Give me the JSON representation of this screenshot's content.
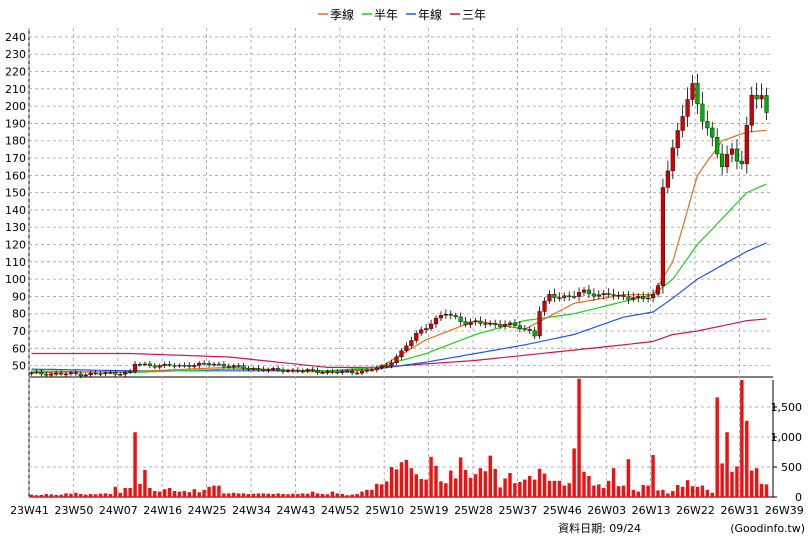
{
  "legend": [
    {
      "label": "季線",
      "color": "#e07020"
    },
    {
      "label": "半年",
      "color": "#22cc22"
    },
    {
      "label": "年線",
      "color": "#2255ee"
    },
    {
      "label": "三年",
      "color": "#cc1166"
    }
  ],
  "footer": {
    "date_label": "資料日期: 09/24",
    "source": "(Goodinfo.tw)"
  },
  "colors": {
    "up": "#d40000",
    "down": "#00b000",
    "volume": "#ee1111",
    "grid": "#a0a0a0"
  },
  "chart_data": {
    "type": "candlestick",
    "price_axis": {
      "ylim": [
        44,
        244
      ],
      "ticks": [
        50,
        60,
        70,
        80,
        90,
        100,
        110,
        120,
        130,
        140,
        150,
        160,
        170,
        180,
        190,
        200,
        210,
        220,
        230,
        240
      ]
    },
    "volume_axis": {
      "ylim": [
        0,
        1950
      ],
      "ticks": [
        0,
        500,
        1000,
        1500
      ],
      "tick_labels": [
        "0",
        "500",
        "1,000",
        "1,500"
      ]
    },
    "x_ticks": [
      "23W41",
      "23W50",
      "24W07",
      "24W16",
      "24W25",
      "24W34",
      "24W43",
      "24W52",
      "25W10",
      "25W19",
      "25W28",
      "25W37",
      "25W46",
      "26W03",
      "26W13",
      "26W22",
      "26W31",
      "26W39"
    ],
    "tick_every": 9,
    "price_anchors": [
      [
        0,
        45.5
      ],
      [
        10,
        45
      ],
      [
        20,
        46
      ],
      [
        21,
        51
      ],
      [
        25,
        50
      ],
      [
        30,
        50
      ],
      [
        37,
        51
      ],
      [
        42,
        49
      ],
      [
        48,
        47.5
      ],
      [
        55,
        47
      ],
      [
        64,
        46
      ],
      [
        68,
        47
      ],
      [
        72,
        50
      ],
      [
        75,
        58
      ],
      [
        78,
        68
      ],
      [
        81,
        75
      ],
      [
        84,
        80
      ],
      [
        88,
        75
      ],
      [
        93,
        74
      ],
      [
        96,
        74
      ],
      [
        99,
        72
      ],
      [
        101,
        70
      ],
      [
        102,
        68
      ],
      [
        103,
        82
      ],
      [
        105,
        90
      ],
      [
        108,
        90
      ],
      [
        112,
        92
      ],
      [
        115,
        91
      ],
      [
        117,
        92
      ],
      [
        119,
        89
      ],
      [
        122,
        90
      ],
      [
        124,
        89
      ],
      [
        126,
        90
      ],
      [
        127,
        95
      ],
      [
        128,
        155
      ],
      [
        130,
        175
      ],
      [
        132,
        195
      ],
      [
        134,
        210
      ],
      [
        136,
        195
      ],
      [
        138,
        180
      ],
      [
        140,
        165
      ],
      [
        142,
        175
      ],
      [
        144,
        168
      ],
      [
        146,
        205
      ],
      [
        148,
        205
      ],
      [
        149,
        195
      ]
    ],
    "ma_quarter": [
      [
        0,
        46
      ],
      [
        20,
        46.5
      ],
      [
        40,
        49
      ],
      [
        60,
        46
      ],
      [
        70,
        48
      ],
      [
        80,
        65
      ],
      [
        90,
        76
      ],
      [
        100,
        71
      ],
      [
        110,
        86
      ],
      [
        120,
        91
      ],
      [
        126,
        91
      ],
      [
        130,
        110
      ],
      [
        135,
        160
      ],
      [
        140,
        180
      ],
      [
        145,
        185
      ],
      [
        149,
        186
      ]
    ],
    "ma_half": [
      [
        0,
        47
      ],
      [
        20,
        46
      ],
      [
        40,
        48
      ],
      [
        60,
        47
      ],
      [
        70,
        49
      ],
      [
        80,
        57
      ],
      [
        90,
        68
      ],
      [
        100,
        76
      ],
      [
        110,
        80
      ],
      [
        120,
        87
      ],
      [
        126,
        91
      ],
      [
        130,
        100
      ],
      [
        135,
        120
      ],
      [
        140,
        135
      ],
      [
        145,
        150
      ],
      [
        149,
        155
      ]
    ],
    "ma_year": [
      [
        0,
        48
      ],
      [
        20,
        47
      ],
      [
        40,
        47
      ],
      [
        60,
        47
      ],
      [
        70,
        48
      ],
      [
        80,
        52
      ],
      [
        90,
        57
      ],
      [
        100,
        62
      ],
      [
        110,
        68
      ],
      [
        120,
        78
      ],
      [
        126,
        81
      ],
      [
        130,
        89
      ],
      [
        135,
        100
      ],
      [
        140,
        108
      ],
      [
        145,
        116
      ],
      [
        149,
        121
      ]
    ],
    "ma_3year": [
      [
        0,
        57
      ],
      [
        20,
        57
      ],
      [
        40,
        55
      ],
      [
        60,
        49
      ],
      [
        70,
        49
      ],
      [
        80,
        51
      ],
      [
        90,
        53
      ],
      [
        100,
        56
      ],
      [
        110,
        59
      ],
      [
        120,
        62
      ],
      [
        126,
        64
      ],
      [
        130,
        68
      ],
      [
        135,
        70
      ],
      [
        140,
        73
      ],
      [
        145,
        76
      ],
      [
        149,
        77
      ]
    ],
    "volume_bars": [
      [
        0,
        40
      ],
      [
        1,
        30
      ],
      [
        2,
        35
      ],
      [
        3,
        50
      ],
      [
        4,
        45
      ],
      [
        5,
        35
      ],
      [
        6,
        40
      ],
      [
        7,
        60
      ],
      [
        8,
        55
      ],
      [
        9,
        70
      ],
      [
        10,
        50
      ],
      [
        11,
        40
      ],
      [
        12,
        50
      ],
      [
        13,
        45
      ],
      [
        14,
        55
      ],
      [
        15,
        60
      ],
      [
        16,
        50
      ],
      [
        17,
        170
      ],
      [
        18,
        70
      ],
      [
        19,
        150
      ],
      [
        20,
        150
      ],
      [
        21,
        1080
      ],
      [
        22,
        220
      ],
      [
        23,
        450
      ],
      [
        24,
        150
      ],
      [
        25,
        100
      ],
      [
        26,
        90
      ],
      [
        27,
        130
      ],
      [
        28,
        150
      ],
      [
        29,
        100
      ],
      [
        30,
        90
      ],
      [
        31,
        100
      ],
      [
        32,
        80
      ],
      [
        33,
        130
      ],
      [
        34,
        80
      ],
      [
        35,
        120
      ],
      [
        36,
        170
      ],
      [
        37,
        190
      ],
      [
        38,
        190
      ],
      [
        39,
        60
      ],
      [
        40,
        60
      ],
      [
        41,
        70
      ],
      [
        42,
        60
      ],
      [
        43,
        60
      ],
      [
        44,
        50
      ],
      [
        45,
        55
      ],
      [
        46,
        60
      ],
      [
        47,
        60
      ],
      [
        48,
        55
      ],
      [
        49,
        50
      ],
      [
        50,
        60
      ],
      [
        51,
        50
      ],
      [
        52,
        45
      ],
      [
        53,
        55
      ],
      [
        54,
        50
      ],
      [
        55,
        60
      ],
      [
        56,
        55
      ],
      [
        57,
        90
      ],
      [
        58,
        60
      ],
      [
        59,
        50
      ],
      [
        60,
        45
      ],
      [
        61,
        90
      ],
      [
        62,
        60
      ],
      [
        63,
        50
      ],
      [
        64,
        30
      ],
      [
        65,
        40
      ],
      [
        66,
        50
      ],
      [
        67,
        90
      ],
      [
        68,
        120
      ],
      [
        69,
        120
      ],
      [
        70,
        220
      ],
      [
        71,
        210
      ],
      [
        72,
        260
      ],
      [
        73,
        500
      ],
      [
        74,
        460
      ],
      [
        75,
        580
      ],
      [
        76,
        620
      ],
      [
        77,
        480
      ],
      [
        78,
        380
      ],
      [
        79,
        300
      ],
      [
        80,
        290
      ],
      [
        81,
        670
      ],
      [
        82,
        520
      ],
      [
        83,
        260
      ],
      [
        84,
        230
      ],
      [
        85,
        440
      ],
      [
        86,
        310
      ],
      [
        87,
        660
      ],
      [
        88,
        450
      ],
      [
        89,
        320
      ],
      [
        90,
        380
      ],
      [
        91,
        480
      ],
      [
        92,
        430
      ],
      [
        93,
        690
      ],
      [
        94,
        470
      ],
      [
        95,
        160
      ],
      [
        96,
        310
      ],
      [
        97,
        400
      ],
      [
        98,
        230
      ],
      [
        99,
        250
      ],
      [
        100,
        290
      ],
      [
        101,
        350
      ],
      [
        102,
        290
      ],
      [
        103,
        470
      ],
      [
        104,
        390
      ],
      [
        105,
        270
      ],
      [
        106,
        270
      ],
      [
        107,
        270
      ],
      [
        108,
        190
      ],
      [
        109,
        230
      ],
      [
        110,
        810
      ],
      [
        111,
        1970
      ],
      [
        112,
        420
      ],
      [
        113,
        350
      ],
      [
        114,
        190
      ],
      [
        115,
        210
      ],
      [
        116,
        150
      ],
      [
        117,
        270
      ],
      [
        118,
        480
      ],
      [
        119,
        180
      ],
      [
        120,
        190
      ],
      [
        121,
        630
      ],
      [
        122,
        120
      ],
      [
        123,
        90
      ],
      [
        124,
        200
      ],
      [
        125,
        190
      ],
      [
        126,
        700
      ],
      [
        127,
        110
      ],
      [
        128,
        120
      ],
      [
        129,
        60
      ],
      [
        130,
        100
      ],
      [
        131,
        200
      ],
      [
        132,
        170
      ],
      [
        133,
        280
      ],
      [
        134,
        180
      ],
      [
        135,
        170
      ],
      [
        136,
        190
      ],
      [
        137,
        120
      ],
      [
        138,
        70
      ],
      [
        139,
        1660
      ],
      [
        140,
        560
      ],
      [
        141,
        1080
      ],
      [
        142,
        420
      ],
      [
        143,
        510
      ],
      [
        144,
        1950
      ],
      [
        145,
        1270
      ],
      [
        146,
        440
      ],
      [
        147,
        480
      ],
      [
        148,
        220
      ],
      [
        149,
        210
      ]
    ]
  }
}
